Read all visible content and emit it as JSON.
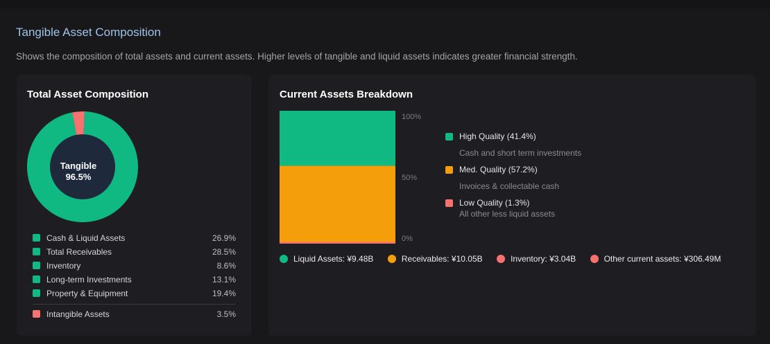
{
  "header": {
    "title": "Tangible Asset Composition",
    "subtitle": "Shows the composition of total assets and current assets. Higher levels of tangible and liquid assets indicates greater financial strength."
  },
  "colors": {
    "green": "#10b981",
    "amber": "#f59e0b",
    "red": "#f87171",
    "donut_center": "#1e293b"
  },
  "total_assets": {
    "title": "Total Asset Composition",
    "center_label": "Tangible",
    "center_value": "96.5%",
    "items": [
      {
        "label": "Cash & Liquid Assets",
        "value": "26.9%"
      },
      {
        "label": "Total Receivables",
        "value": "28.5%"
      },
      {
        "label": "Inventory",
        "value": "8.6%"
      },
      {
        "label": "Long-term Investments",
        "value": "13.1%"
      },
      {
        "label": "Property & Equipment",
        "value": "19.4%"
      }
    ],
    "intangible": {
      "label": "Intangible Assets",
      "value": "3.5%"
    }
  },
  "current_assets": {
    "title": "Current Assets Breakdown",
    "axis": [
      "100%",
      "50%",
      "0%"
    ],
    "quality": [
      {
        "label": "High Quality (41.4%)",
        "desc": "Cash and short term investments"
      },
      {
        "label": "Med. Quality (57.2%)",
        "desc": "Invoices & collectable cash"
      },
      {
        "label": "Low Quality (1.3%)",
        "desc": "All other less liquid assets"
      }
    ],
    "legend": [
      {
        "label": "Liquid Assets: ¥9.48B"
      },
      {
        "label": "Receivables: ¥10.05B"
      },
      {
        "label": "Inventory: ¥3.04B"
      },
      {
        "label": "Other current assets: ¥306.49M"
      }
    ]
  },
  "chart_data": [
    {
      "type": "pie",
      "title": "Total Asset Composition",
      "categories": [
        "Tangible",
        "Intangible Assets"
      ],
      "values": [
        96.5,
        3.5
      ]
    },
    {
      "type": "bar",
      "title": "Current Assets Breakdown",
      "categories": [
        "High Quality",
        "Med. Quality",
        "Low Quality"
      ],
      "values": [
        41.4,
        57.2,
        1.3
      ],
      "ylim": [
        0,
        100
      ]
    }
  ]
}
